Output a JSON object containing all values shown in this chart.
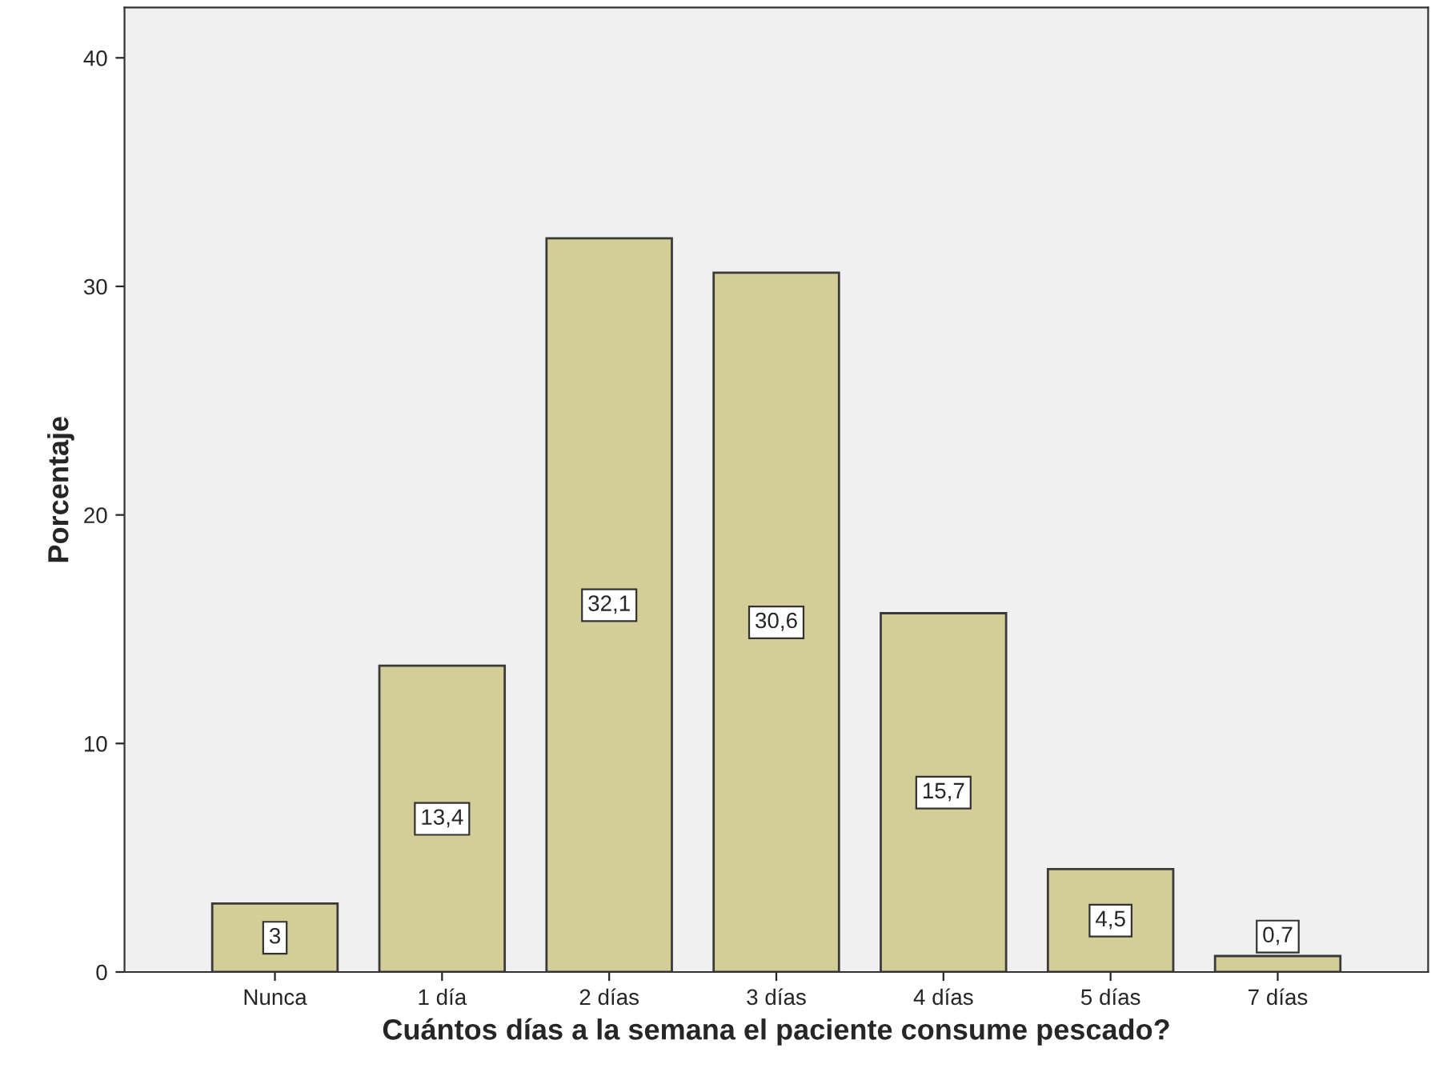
{
  "chart_data": {
    "type": "bar",
    "xlabel": "Cuántos días a la semana el paciente consume pescado?",
    "ylabel": "Porcentaje",
    "categories": [
      "Nunca",
      "1 día",
      "2 días",
      "3 días",
      "4 días",
      "5 días",
      "7 días"
    ],
    "values": [
      3,
      13.4,
      32.1,
      30.6,
      15.7,
      4.5,
      0.7
    ],
    "value_labels": [
      "3",
      "13,4",
      "32,1",
      "30,6",
      "15,7",
      "4,5",
      "0,7"
    ],
    "color": "#d3ce97",
    "ylim": [
      0,
      42.2
    ],
    "yticks": [
      0,
      10,
      20,
      30,
      40
    ],
    "grid": false,
    "legend": false
  }
}
